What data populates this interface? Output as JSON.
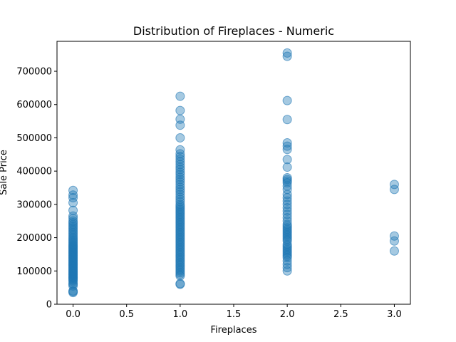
{
  "chart_data": {
    "type": "scatter",
    "title": "Distribution of Fireplaces - Numeric",
    "xlabel": "Fireplaces",
    "ylabel": "Sale Price",
    "xlim": [
      -0.15,
      3.15
    ],
    "ylim": [
      0,
      790000
    ],
    "xticks": [
      0.0,
      0.5,
      1.0,
      1.5,
      2.0,
      2.5,
      3.0
    ],
    "xtick_labels": [
      "0.0",
      "0.5",
      "1.0",
      "1.5",
      "2.0",
      "2.5",
      "3.0"
    ],
    "yticks": [
      0,
      100000,
      200000,
      300000,
      400000,
      500000,
      600000,
      700000
    ],
    "ytick_labels": [
      "0",
      "100000",
      "200000",
      "300000",
      "400000",
      "500000",
      "600000",
      "700000"
    ],
    "grid": false,
    "point_color": "#1f77b4",
    "point_alpha": 0.4,
    "series": [
      {
        "x": 0,
        "y": [
          35000,
          38000,
          40000,
          55000,
          60000,
          62000,
          68000,
          72000,
          75000,
          78000,
          80000,
          82000,
          85000,
          88000,
          90000,
          92000,
          95000,
          98000,
          100000,
          103000,
          106000,
          109000,
          112000,
          115000,
          118000,
          120000,
          123000,
          126000,
          129000,
          132000,
          135000,
          138000,
          141000,
          144000,
          147000,
          150000,
          153000,
          156000,
          159000,
          162000,
          165000,
          168000,
          171000,
          174000,
          177000,
          180000,
          184000,
          188000,
          192000,
          196000,
          200000,
          205000,
          210000,
          215000,
          220000,
          225000,
          230000,
          235000,
          240000,
          245000,
          250000,
          258000,
          265000,
          282000,
          305000,
          320000,
          328000,
          342000
        ]
      },
      {
        "x": 1,
        "y": [
          60000,
          62000,
          85000,
          90000,
          95000,
          100000,
          105000,
          110000,
          115000,
          120000,
          125000,
          130000,
          135000,
          140000,
          145000,
          150000,
          155000,
          160000,
          165000,
          170000,
          175000,
          180000,
          185000,
          190000,
          195000,
          200000,
          205000,
          210000,
          215000,
          220000,
          225000,
          230000,
          235000,
          240000,
          245000,
          250000,
          255000,
          260000,
          265000,
          270000,
          275000,
          280000,
          285000,
          290000,
          295000,
          300000,
          308000,
          315000,
          322000,
          330000,
          338000,
          345000,
          352000,
          360000,
          368000,
          375000,
          382000,
          390000,
          397000,
          405000,
          412000,
          420000,
          428000,
          436000,
          444000,
          452000,
          464000,
          500000,
          538000,
          556000,
          582000,
          625000
        ]
      },
      {
        "x": 2,
        "y": [
          100000,
          110000,
          120000,
          130000,
          140000,
          145000,
          150000,
          155000,
          160000,
          165000,
          170000,
          175000,
          180000,
          190000,
          195000,
          200000,
          205000,
          210000,
          215000,
          220000,
          225000,
          230000,
          235000,
          240000,
          250000,
          260000,
          270000,
          280000,
          290000,
          300000,
          310000,
          320000,
          330000,
          345000,
          355000,
          365000,
          370000,
          375000,
          380000,
          412000,
          435000,
          465000,
          475000,
          485000,
          555000,
          612000,
          745000,
          755000
        ]
      },
      {
        "x": 3,
        "y": [
          160000,
          190000,
          205000,
          345000,
          360000
        ]
      }
    ]
  }
}
